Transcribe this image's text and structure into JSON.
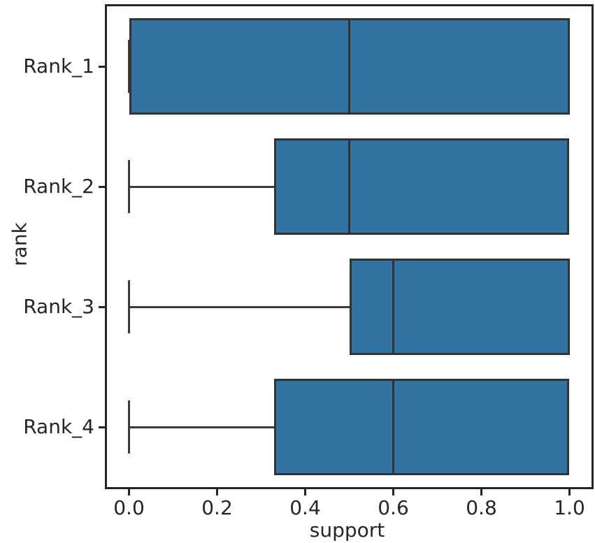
{
  "chart_data": {
    "type": "boxplot",
    "orientation": "horizontal",
    "title": "",
    "xlabel": "support",
    "ylabel": "rank",
    "categories": [
      "Rank_1",
      "Rank_2",
      "Rank_3",
      "Rank_4"
    ],
    "boxes": [
      {
        "category": "Rank_1",
        "whisker_low": 0.0,
        "q1": 0.0,
        "median": 0.5,
        "q3": 1.0,
        "whisker_high": 1.0
      },
      {
        "category": "Rank_2",
        "whisker_low": 0.0,
        "q1": 0.33,
        "median": 0.5,
        "q3": 1.0,
        "whisker_high": 1.0
      },
      {
        "category": "Rank_3",
        "whisker_low": 0.0,
        "q1": 0.5,
        "median": 0.6,
        "q3": 1.0,
        "whisker_high": 1.0
      },
      {
        "category": "Rank_4",
        "whisker_low": 0.0,
        "q1": 0.33,
        "median": 0.6,
        "q3": 1.0,
        "whisker_high": 1.0
      }
    ],
    "x_ticks": [
      0.0,
      0.2,
      0.4,
      0.6,
      0.8,
      1.0
    ],
    "x_tick_labels": [
      "0.0",
      "0.2",
      "0.4",
      "0.6",
      "0.8",
      "1.0"
    ],
    "xlim": [
      -0.05,
      1.05
    ],
    "ylim": [
      -0.5,
      3.5
    ],
    "grid": false,
    "legend": null,
    "colors": {
      "box_fill": "#3274a1",
      "box_edge": "#333333",
      "whisker": "#3a3a3a",
      "median": "#333333",
      "spine": "#262626",
      "text": "#262626",
      "background": "#ffffff"
    }
  }
}
